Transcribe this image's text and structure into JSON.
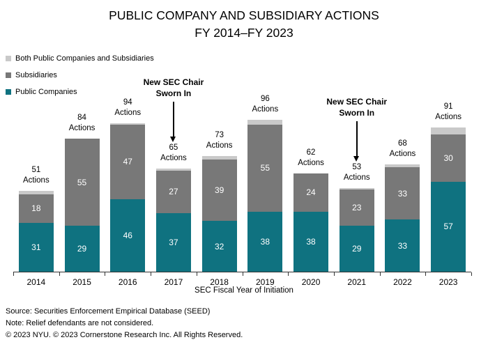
{
  "title": {
    "line1": "PUBLIC COMPANY AND SUBSIDIARY ACTIONS",
    "line2": "FY 2014–FY 2023"
  },
  "legend": [
    {
      "label": "Both Public Companies and Subsidiaries",
      "color": "#c9c9c9"
    },
    {
      "label": "Subsidiaries",
      "color": "#787878"
    },
    {
      "label": "Public Companies",
      "color": "#0f7280"
    }
  ],
  "chart_data": {
    "type": "bar",
    "stacked": true,
    "title": "PUBLIC COMPANY AND SUBSIDIARY ACTIONS FY 2014–FY 2023",
    "xlabel": "SEC Fiscal Year of Initiation",
    "ylabel": "",
    "ylim": [
      0,
      100
    ],
    "grid": false,
    "legend_position": "top-left",
    "categories": [
      "2014",
      "2015",
      "2016",
      "2017",
      "2018",
      "2019",
      "2020",
      "2021",
      "2022",
      "2023"
    ],
    "series": [
      {
        "name": "Public Companies",
        "color": "#0f7280",
        "values": [
          31,
          29,
          46,
          37,
          32,
          38,
          38,
          29,
          33,
          57
        ]
      },
      {
        "name": "Subsidiaries",
        "color": "#787878",
        "values": [
          18,
          55,
          47,
          27,
          39,
          55,
          24,
          23,
          33,
          30
        ]
      },
      {
        "name": "Both Public Companies and Subsidiaries",
        "color": "#c9c9c9",
        "values": [
          2,
          0,
          1,
          1,
          2,
          3,
          0,
          1,
          2,
          4
        ]
      }
    ],
    "totals": [
      51,
      84,
      94,
      65,
      73,
      96,
      62,
      53,
      68,
      91
    ],
    "total_label_suffix": "Actions",
    "annotations": [
      {
        "line1": "New SEC Chair",
        "line2": "Sworn In",
        "target_year": "2017"
      },
      {
        "line1": "New SEC Chair",
        "line2": "Sworn In",
        "target_year": "2021"
      }
    ]
  },
  "footnotes": [
    "Source: Securities Enforcement Empirical Database (SEED)",
    "Note: Relief defendants are not considered.",
    "© 2023 NYU. © 2023 Cornerstone Research Inc. All Rights Reserved."
  ]
}
